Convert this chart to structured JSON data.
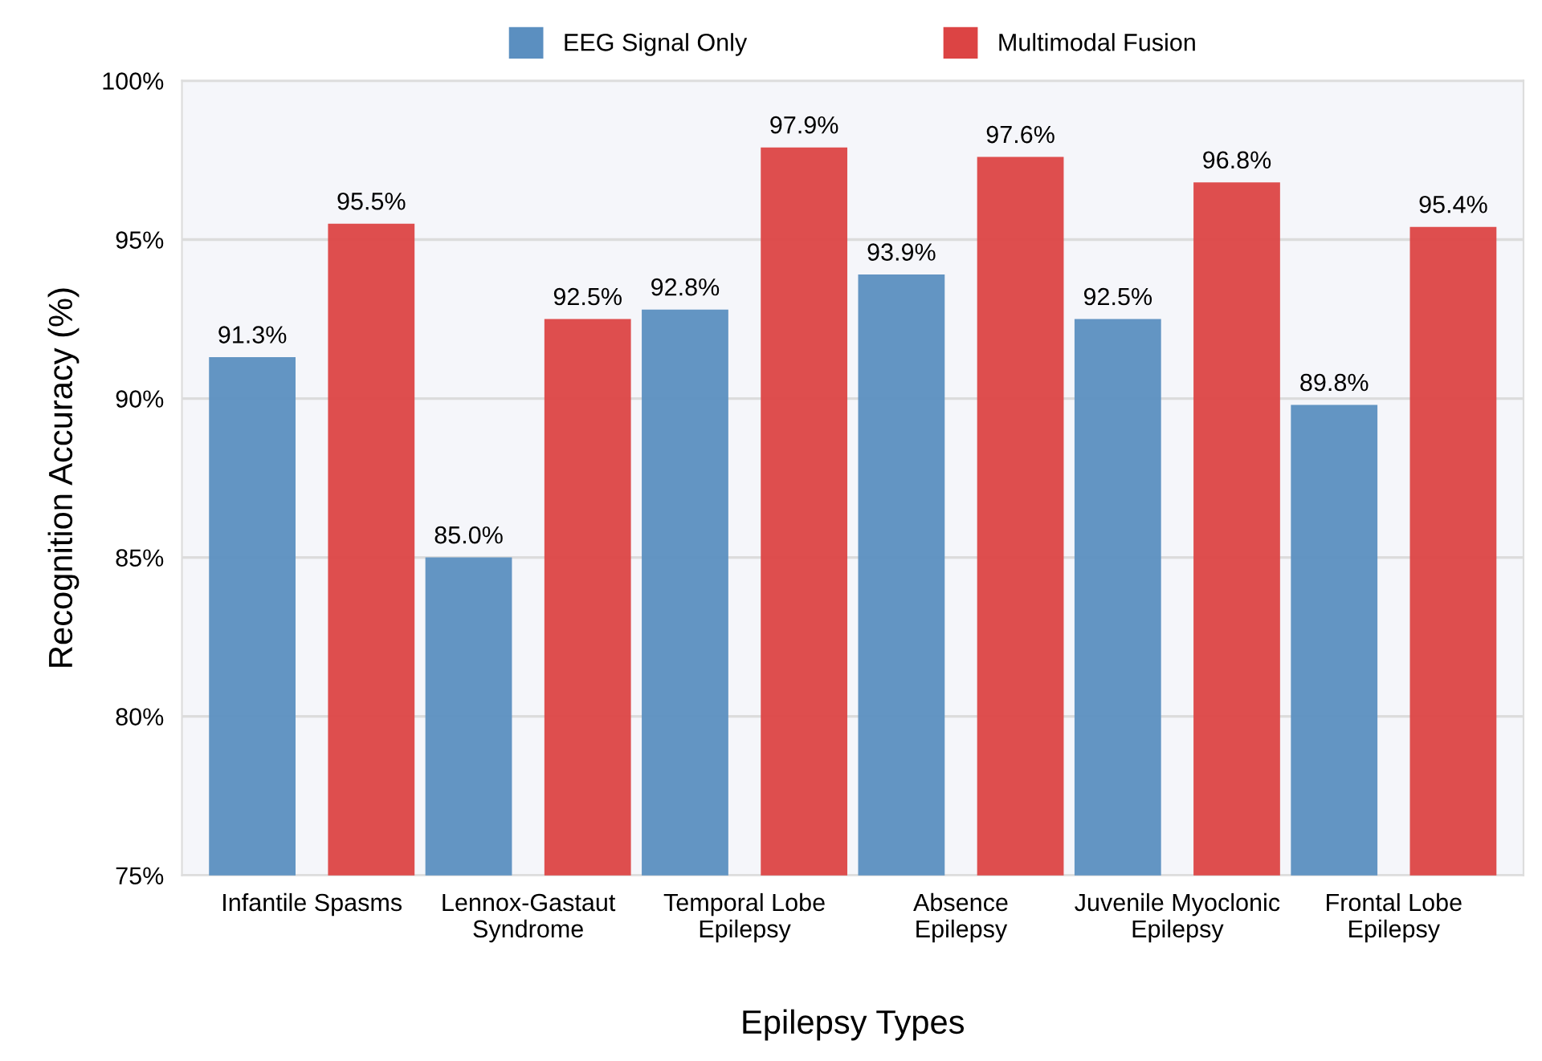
{
  "chart_data": {
    "type": "bar",
    "xlabel": "Epilepsy Types",
    "ylabel": "Recognition Accuracy (%)",
    "categories": [
      "Infantile Spasms",
      "Lennox-Gastaut\nSyndrome",
      "Temporal Lobe\nEpilepsy",
      "Absence\nEpilepsy",
      "Juvenile Myoclonic\nEpilepsy",
      "Frontal Lobe\nEpilepsy"
    ],
    "series": [
      {
        "name": "EEG Signal Only",
        "color": "#5b8fc0",
        "values": [
          91.3,
          85.0,
          92.8,
          93.9,
          92.5,
          89.8
        ],
        "value_labels": [
          "91.3%",
          "85.0%",
          "92.8%",
          "93.9%",
          "92.5%",
          "89.8%"
        ]
      },
      {
        "name": "Multimodal Fusion",
        "color": "#dc4444",
        "values": [
          95.5,
          92.5,
          97.9,
          97.6,
          96.8,
          95.4
        ],
        "value_labels": [
          "95.5%",
          "92.5%",
          "97.9%",
          "97.6%",
          "96.8%",
          "95.4%"
        ]
      }
    ],
    "ylim": [
      75,
      100
    ],
    "yticks": [
      {
        "value": 75,
        "label": "75%"
      },
      {
        "value": 80,
        "label": "80%"
      },
      {
        "value": 85,
        "label": "85%"
      },
      {
        "value": 90,
        "label": "90%"
      },
      {
        "value": 95,
        "label": "95%"
      },
      {
        "value": 100,
        "label": "100%"
      }
    ],
    "grid": "y",
    "legend": "top"
  }
}
